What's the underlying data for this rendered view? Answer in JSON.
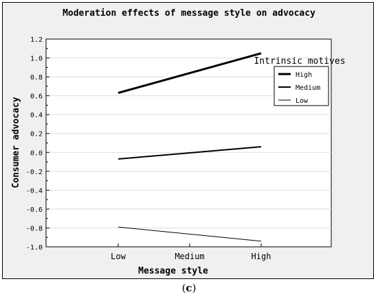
{
  "chart_data": {
    "type": "line",
    "title": "Moderation effects of message style on advocacy",
    "xlabel": "Message style",
    "ylabel": "Consumer advocacy",
    "categories": [
      "Low",
      "Medium",
      "High"
    ],
    "ylim": [
      -1.0,
      1.2
    ],
    "yticks": [
      "1.2",
      "1.0",
      "0.8",
      "0.6",
      "0.4",
      "0.2",
      "0.0",
      "-0.2",
      "-0.4",
      "-0.6",
      "-0.8",
      "-1.0"
    ],
    "legend_title": "Intrinsic motives",
    "legend_position": "top-right",
    "grid": true,
    "series": [
      {
        "name": "High",
        "values": [
          0.63,
          null,
          1.05
        ],
        "line_width": 3
      },
      {
        "name": "Medium",
        "values": [
          -0.07,
          null,
          0.06
        ],
        "line_width": 2
      },
      {
        "name": "Low",
        "values": [
          -0.79,
          null,
          -0.94
        ],
        "line_width": 1
      }
    ]
  },
  "caption_label": "c"
}
